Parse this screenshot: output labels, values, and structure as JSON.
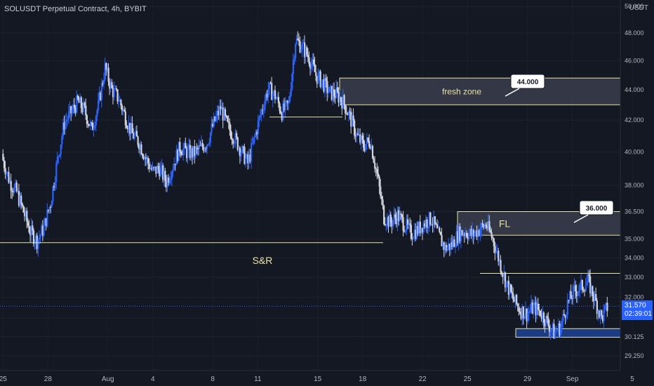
{
  "header": {
    "title": "SOLUSDT Perpetual Contract, 4h, BYBIT",
    "currency": "USDT"
  },
  "price_tag": {
    "price": "31.570",
    "countdown": "02:39:01"
  },
  "colors": {
    "background": "#141823",
    "up_candle": "#2962ff",
    "down_candle": "#d1d4dc",
    "level_line": "#e8e2a4",
    "zone_fill": "#3a3e4c",
    "demand_zone": "#1c3f8f",
    "axis_text": "#b2b5be"
  },
  "chart_data": {
    "type": "candlestick",
    "title": "SOLUSDT Perpetual Contract, 4h, BYBIT",
    "ylabel": "USDT",
    "ylim": [
      28.6,
      50.5
    ],
    "y_scale": "log",
    "xlim": [
      -0.2,
      41.2
    ],
    "y_ticks": [
      "29.250",
      "30.125",
      "31.000",
      "32.000",
      "33.000",
      "34.000",
      "35.000",
      "36.500",
      "38.000",
      "40.000",
      "42.000",
      "44.000",
      "46.000",
      "48.000",
      "50.000"
    ],
    "x_ticks": [
      {
        "label": "25",
        "day": 0
      },
      {
        "label": "28",
        "day": 3
      },
      {
        "label": "Aug",
        "day": 7
      },
      {
        "label": "4",
        "day": 10
      },
      {
        "label": "8",
        "day": 14
      },
      {
        "label": "11",
        "day": 17
      },
      {
        "label": "15",
        "day": 21
      },
      {
        "label": "18",
        "day": 24
      },
      {
        "label": "22",
        "day": 28
      },
      {
        "label": "25",
        "day": 31
      },
      {
        "label": "29",
        "day": 35
      },
      {
        "label": "Sep",
        "day": 38
      },
      {
        "label": "5",
        "day": 42
      }
    ],
    "closes": [
      39.5,
      38.2,
      37.6,
      36.5,
      35.4,
      34.9,
      35.6,
      37.0,
      39.5,
      41.8,
      42.5,
      43.2,
      42.6,
      41.4,
      42.9,
      45.5,
      44.0,
      43.4,
      42.2,
      41.1,
      40.6,
      39.6,
      38.8,
      39.0,
      38.2,
      39.2,
      40.3,
      40.0,
      39.9,
      40.2,
      40.6,
      41.8,
      42.8,
      41.6,
      40.9,
      40.1,
      39.3,
      40.9,
      42.6,
      44.1,
      43.6,
      42.5,
      43.0,
      47.5,
      47.0,
      46.2,
      45.0,
      44.5,
      43.8,
      43.7,
      43.2,
      42.2,
      41.0,
      40.4,
      40.7,
      38.6,
      36.2,
      35.9,
      36.3,
      35.8,
      35.3,
      35.5,
      35.9,
      36.1,
      35.2,
      34.5,
      34.7,
      35.3,
      35.4,
      35.2,
      35.5,
      35.8,
      35.0,
      33.8,
      32.7,
      31.9,
      31.4,
      31.2,
      31.5,
      31.3,
      30.8,
      30.3,
      30.6,
      31.7,
      32.3,
      32.5,
      32.8,
      31.9,
      31.0,
      31.6
    ],
    "levels": [
      {
        "name": "S&R",
        "price": 34.8
      },
      {
        "name": "support-line",
        "price": 42.2
      },
      {
        "name": "resistance-line",
        "price": 33.2
      }
    ],
    "zones": [
      {
        "name": "fresh zone",
        "top": 44.8,
        "bottom": 43.0
      },
      {
        "name": "FL",
        "top": 36.5,
        "bottom": 35.2
      },
      {
        "name": "demand",
        "top": 30.5,
        "bottom": 30.1
      }
    ],
    "annotations": {
      "fresh_zone_label": "fresh zone",
      "fl_label": "FL",
      "sr_label": "S&R",
      "callout_44": "44.000",
      "callout_36": "36.000"
    },
    "current_price": 31.57
  }
}
